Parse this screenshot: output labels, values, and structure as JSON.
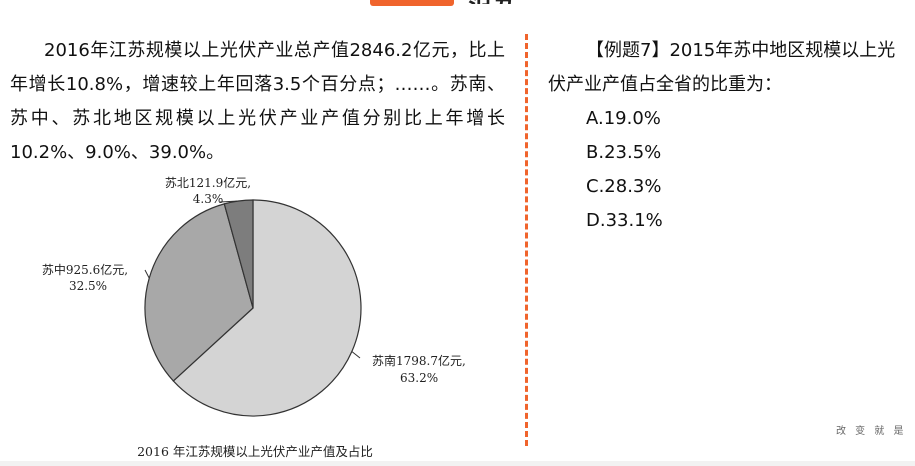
{
  "header": {
    "title_fragment": "范五"
  },
  "passage": {
    "text": "2016年江苏规模以上光伏产业总产值2846.2亿元，比上年增长10.8%，增速较上年回落3.5个百分点；……。苏南、苏中、苏北地区规模以上光伏产业产值分别比上年增长10.2%、9.0%、39.0%。"
  },
  "question": {
    "stem": "【例题7】2015年苏中地区规模以上光伏产业产值占全省的比重为：",
    "options": [
      "A.19.0%",
      "B.23.5%",
      "C.28.3%",
      "D.33.1%"
    ]
  },
  "chart_data": {
    "type": "pie",
    "title": "2016 年江苏规模以上光伏产业产值及占比",
    "slices": [
      {
        "region": "苏南",
        "value": 1798.7,
        "unit": "亿元",
        "percent": 63.2,
        "label": "苏南1798.7亿元,",
        "percent_label": "63.2%",
        "color": "#d4d4d4"
      },
      {
        "region": "苏中",
        "value": 925.6,
        "unit": "亿元",
        "percent": 32.5,
        "label": "苏中925.6亿元,",
        "percent_label": "32.5%",
        "color": "#a8a8a8"
      },
      {
        "region": "苏北",
        "value": 121.9,
        "unit": "亿元",
        "percent": 4.3,
        "label": "苏北121.9亿元,",
        "percent_label": "4.3%",
        "color": "#7d7d7d"
      }
    ],
    "start": "12 o'clock",
    "direction": "clockwise",
    "legend": "none",
    "label_placement": "outside"
  },
  "footer": {
    "note": "改 变 就 是"
  }
}
